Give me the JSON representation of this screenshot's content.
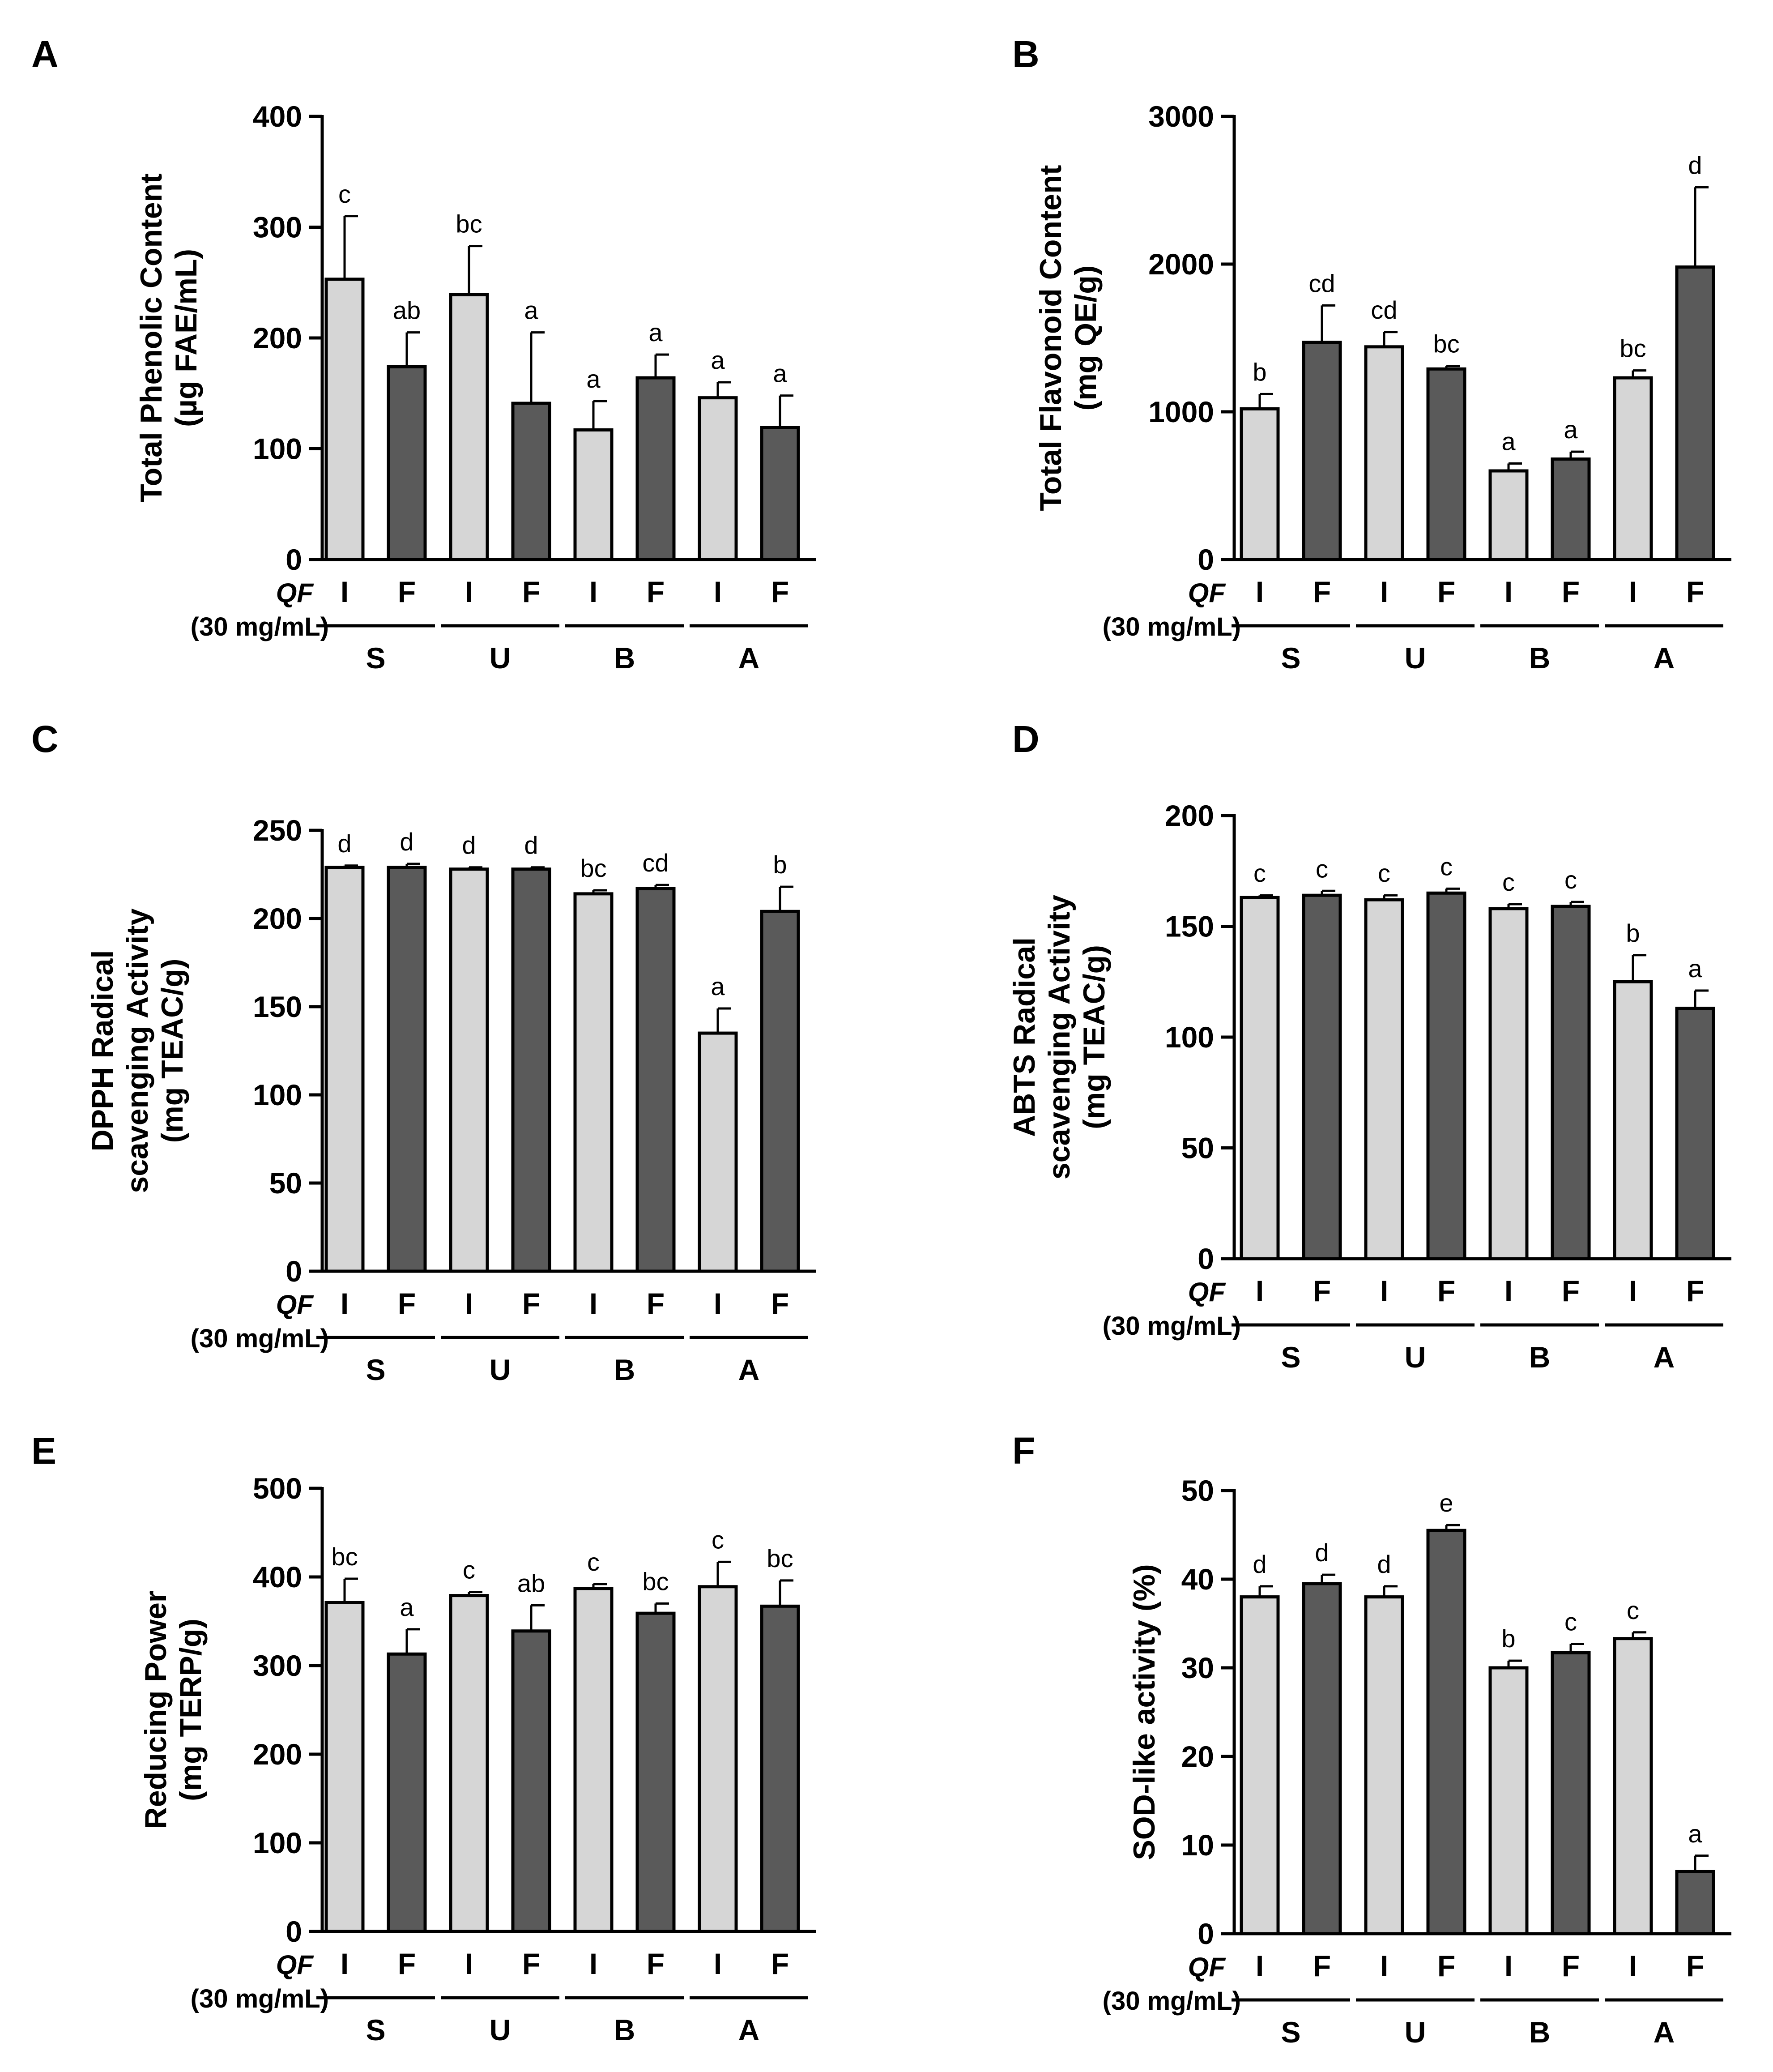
{
  "figure": {
    "colors": {
      "light_bar": "#d6d6d6",
      "dark_bar": "#5a5a5a",
      "stroke": "#000000"
    },
    "treatment_label": "QF",
    "treatment_sub": "(30 mg/mL)"
  },
  "chart_data": [
    {
      "type": "bar",
      "panel": "A",
      "ylabel": [
        "Total Phenolic Content",
        "(µg FAE/mL)"
      ],
      "ylim": [
        0,
        400
      ],
      "yticks": [
        0,
        100,
        200,
        300,
        400
      ],
      "categories": [
        "I",
        "F",
        "I",
        "F",
        "I",
        "F",
        "I",
        "F"
      ],
      "groups": [
        "S",
        "U",
        "B",
        "A"
      ],
      "values": [
        253,
        174,
        239,
        141,
        117,
        164,
        146,
        119
      ],
      "errors": [
        57,
        31,
        44,
        64,
        26,
        21,
        14,
        29
      ],
      "letters": [
        "c",
        "ab",
        "bc",
        "a",
        "a",
        "a",
        "a",
        "a"
      ]
    },
    {
      "type": "bar",
      "panel": "B",
      "ylabel": [
        "Total Flavonoid Content",
        "(mg QE/g)"
      ],
      "ylim": [
        0,
        3000
      ],
      "yticks": [
        0,
        1000,
        2000,
        3000
      ],
      "categories": [
        "I",
        "F",
        "I",
        "F",
        "I",
        "F",
        "I",
        "F"
      ],
      "groups": [
        "S",
        "U",
        "B",
        "A"
      ],
      "values": [
        1020,
        1470,
        1440,
        1290,
        600,
        680,
        1230,
        1980
      ],
      "errors": [
        100,
        250,
        100,
        20,
        50,
        50,
        50,
        540
      ],
      "letters": [
        "b",
        "cd",
        "cd",
        "bc",
        "a",
        "a",
        "bc",
        "d"
      ]
    },
    {
      "type": "bar",
      "panel": "C",
      "ylabel": [
        "DPPH Radical",
        "scavenging Activity",
        "(mg TEAC/g)"
      ],
      "ylim": [
        0,
        250
      ],
      "yticks": [
        0,
        50,
        100,
        150,
        200,
        250
      ],
      "categories": [
        "I",
        "F",
        "I",
        "F",
        "I",
        "F",
        "I",
        "F"
      ],
      "groups": [
        "S",
        "U",
        "B",
        "A"
      ],
      "values": [
        229,
        229,
        228,
        228,
        214,
        217,
        135,
        204
      ],
      "errors": [
        1,
        2,
        1,
        1,
        2,
        2,
        14,
        14
      ],
      "letters": [
        "d",
        "d",
        "d",
        "d",
        "bc",
        "cd",
        "a",
        "b"
      ]
    },
    {
      "type": "bar",
      "panel": "D",
      "ylabel": [
        "ABTS Radical",
        "scavenging Activity",
        "(mg TEAC/g)"
      ],
      "ylim": [
        0,
        200
      ],
      "yticks": [
        0,
        50,
        100,
        150,
        200
      ],
      "categories": [
        "I",
        "F",
        "I",
        "F",
        "I",
        "F",
        "I",
        "F"
      ],
      "groups": [
        "S",
        "U",
        "B",
        "A"
      ],
      "values": [
        163,
        164,
        162,
        165,
        158,
        159,
        125,
        113
      ],
      "errors": [
        1,
        2,
        2,
        2,
        2,
        2,
        12,
        8
      ],
      "letters": [
        "c",
        "c",
        "c",
        "c",
        "c",
        "c",
        "b",
        "a"
      ]
    },
    {
      "type": "bar",
      "panel": "E",
      "ylabel": [
        "Reducing Power",
        "(mg TERP/g)"
      ],
      "ylim": [
        0,
        500
      ],
      "yticks": [
        0,
        100,
        200,
        300,
        400,
        500
      ],
      "categories": [
        "I",
        "F",
        "I",
        "F",
        "I",
        "F",
        "I",
        "F"
      ],
      "groups": [
        "S",
        "U",
        "B",
        "A"
      ],
      "values": [
        371,
        313,
        379,
        339,
        387,
        359,
        389,
        367
      ],
      "errors": [
        27,
        28,
        4,
        29,
        5,
        11,
        28,
        29
      ],
      "letters": [
        "bc",
        "a",
        "c",
        "ab",
        "c",
        "bc",
        "c",
        "bc"
      ]
    },
    {
      "type": "bar",
      "panel": "F",
      "ylabel": [
        "SOD-like activity (%)"
      ],
      "ylim": [
        0,
        50
      ],
      "yticks": [
        0,
        10,
        20,
        30,
        40,
        50
      ],
      "categories": [
        "I",
        "F",
        "I",
        "F",
        "I",
        "F",
        "I",
        "F"
      ],
      "groups": [
        "S",
        "U",
        "B",
        "A"
      ],
      "values": [
        38,
        39.5,
        38,
        45.5,
        30,
        31.7,
        33.3,
        7
      ],
      "errors": [
        1.2,
        1,
        1.2,
        0.6,
        0.8,
        1,
        0.7,
        1.8
      ],
      "letters": [
        "d",
        "d",
        "d",
        "e",
        "b",
        "c",
        "c",
        "a"
      ]
    }
  ]
}
